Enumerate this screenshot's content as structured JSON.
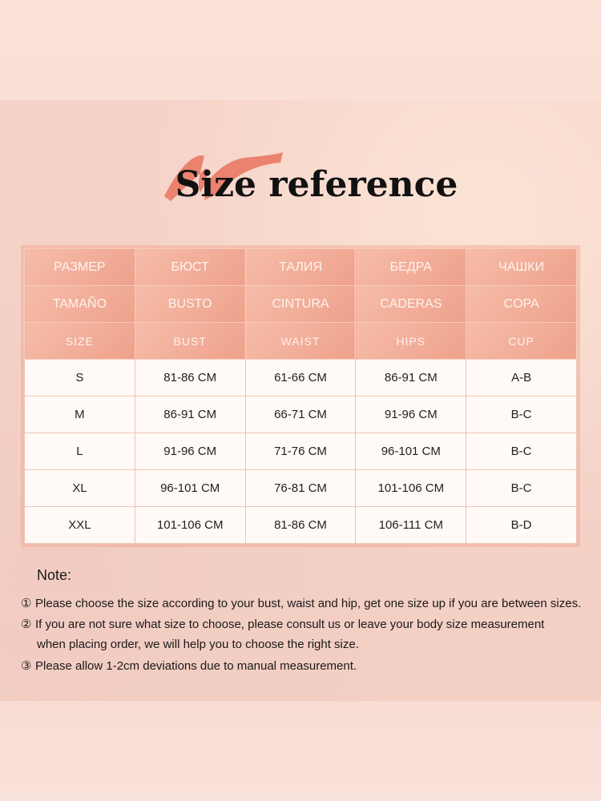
{
  "title": "Size reference",
  "table": {
    "header_rows": [
      [
        "РАЗМЕР",
        "БЮСТ",
        "ТАЛИЯ",
        "БЕДРА",
        "ЧАШКИ"
      ],
      [
        "TAMAÑO",
        "BUSTO",
        "CINTURA",
        "CADERAS",
        "COPA"
      ],
      [
        "SIZE",
        "BUST",
        "WAIST",
        "HIPS",
        "CUP"
      ]
    ],
    "rows": [
      [
        "S",
        "81-86 CM",
        "61-66 CM",
        "86-91 CM",
        "A-B"
      ],
      [
        "M",
        "86-91 CM",
        "66-71 CM",
        "91-96 CM",
        "B-C"
      ],
      [
        "L",
        "91-96 CM",
        "71-76 CM",
        "96-101 CM",
        "B-C"
      ],
      [
        "XL",
        "96-101 CM",
        "76-81 CM",
        "101-106 CM",
        "B-C"
      ],
      [
        "XXL",
        "101-106 CM",
        "81-86 CM",
        "106-111 CM",
        "B-D"
      ]
    ]
  },
  "notes": {
    "title": "Note:",
    "items": [
      {
        "marker": "①",
        "text": "Please choose the size according to your bust, waist and hip, get one size up if you are between sizes."
      },
      {
        "marker": "②",
        "text": "If you are not sure what size to choose, please consult us or leave your body size measurement",
        "continuation": "when placing order, we will help you to choose the right size."
      },
      {
        "marker": "③",
        "text": "Please allow 1-2cm deviations due to manual measurement."
      }
    ]
  },
  "colors": {
    "header": "#eea18b",
    "brush": "#e8735e",
    "background": "#f6d6cc"
  }
}
